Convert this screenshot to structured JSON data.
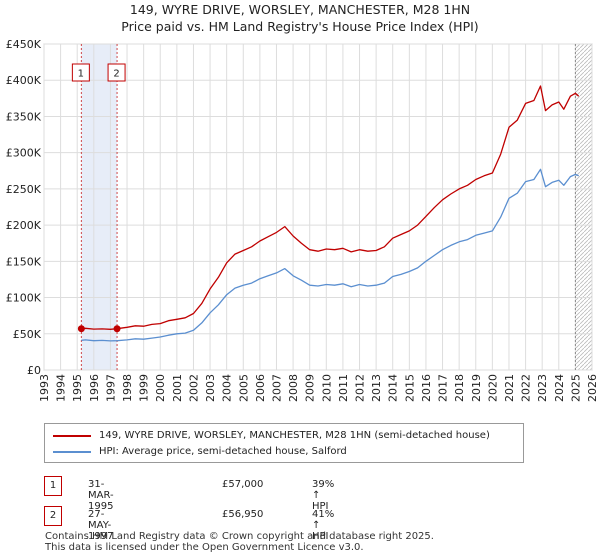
{
  "title_line1": "149, WYRE DRIVE, WORSLEY, MANCHESTER, M28 1HN",
  "title_line2": "Price paid vs. HM Land Registry's House Price Index (HPI)",
  "chart_data": {
    "type": "line",
    "x_range": [
      1993,
      2026
    ],
    "ylim": [
      0,
      450000
    ],
    "y_ticks": [
      0,
      50000,
      100000,
      150000,
      200000,
      250000,
      300000,
      350000,
      400000,
      450000
    ],
    "y_tick_labels": [
      "£0",
      "£50K",
      "£100K",
      "£150K",
      "£200K",
      "£250K",
      "£300K",
      "£350K",
      "£400K",
      "£450K"
    ],
    "x_ticks": [
      1993,
      1994,
      1995,
      1996,
      1997,
      1998,
      1999,
      2000,
      2001,
      2002,
      2003,
      2004,
      2005,
      2006,
      2007,
      2008,
      2009,
      2010,
      2011,
      2012,
      2013,
      2014,
      2015,
      2016,
      2017,
      2018,
      2019,
      2020,
      2021,
      2022,
      2023,
      2024,
      2025,
      2026
    ],
    "grid": true,
    "shaded_span": [
      1995.25,
      1997.4
    ],
    "future_hatch_start": 2025.0,
    "series": [
      {
        "name": "149, WYRE DRIVE, WORSLEY, MANCHESTER, M28 1HN (semi-detached house)",
        "color": "#c00000",
        "x": [
          1995.25,
          1995.5,
          1996.0,
          1996.5,
          1997.0,
          1997.4,
          1998.0,
          1998.5,
          1999.0,
          1999.5,
          2000.0,
          2000.5,
          2001.0,
          2001.5,
          2002.0,
          2002.5,
          2003.0,
          2003.5,
          2004.0,
          2004.5,
          2005.0,
          2005.5,
          2006.0,
          2006.5,
          2007.0,
          2007.5,
          2008.0,
          2008.5,
          2009.0,
          2009.5,
          2010.0,
          2010.5,
          2011.0,
          2011.5,
          2012.0,
          2012.5,
          2013.0,
          2013.5,
          2014.0,
          2014.5,
          2015.0,
          2015.5,
          2016.0,
          2016.5,
          2017.0,
          2017.5,
          2018.0,
          2018.5,
          2019.0,
          2019.5,
          2020.0,
          2020.5,
          2021.0,
          2021.5,
          2022.0,
          2022.5,
          2022.9,
          2023.2,
          2023.6,
          2024.0,
          2024.3,
          2024.7,
          2025.0,
          2025.2
        ],
        "values": [
          57000,
          57500,
          56500,
          56800,
          56200,
          56950,
          59000,
          61000,
          60500,
          63000,
          64000,
          68000,
          70000,
          72000,
          78000,
          92000,
          112000,
          128000,
          148000,
          160000,
          165000,
          170000,
          178000,
          184000,
          190000,
          198000,
          185000,
          175000,
          166000,
          164000,
          167000,
          166000,
          168000,
          163000,
          166000,
          164000,
          165000,
          170000,
          182000,
          187000,
          192000,
          200000,
          212000,
          224000,
          235000,
          243000,
          250000,
          255000,
          263000,
          268000,
          272000,
          298000,
          335000,
          345000,
          368000,
          372000,
          392000,
          358000,
          366000,
          370000,
          360000,
          378000,
          382000,
          378000
        ]
      },
      {
        "name": "HPI: Average price, semi-detached house, Salford",
        "color": "#5b8fd0",
        "x": [
          1995.25,
          1995.5,
          1996.0,
          1996.5,
          1997.0,
          1997.4,
          1998.0,
          1998.5,
          1999.0,
          1999.5,
          2000.0,
          2000.5,
          2001.0,
          2001.5,
          2002.0,
          2002.5,
          2003.0,
          2003.5,
          2004.0,
          2004.5,
          2005.0,
          2005.5,
          2006.0,
          2006.5,
          2007.0,
          2007.5,
          2008.0,
          2008.5,
          2009.0,
          2009.5,
          2010.0,
          2010.5,
          2011.0,
          2011.5,
          2012.0,
          2012.5,
          2013.0,
          2013.5,
          2014.0,
          2014.5,
          2015.0,
          2015.5,
          2016.0,
          2016.5,
          2017.0,
          2017.5,
          2018.0,
          2018.5,
          2019.0,
          2019.5,
          2020.0,
          2020.5,
          2021.0,
          2021.5,
          2022.0,
          2022.5,
          2022.9,
          2023.2,
          2023.6,
          2024.0,
          2024.3,
          2024.7,
          2025.0,
          2025.2
        ],
        "values": [
          41000,
          41500,
          40500,
          40800,
          40200,
          40400,
          41500,
          43000,
          42500,
          44000,
          45500,
          48000,
          50000,
          51000,
          55000,
          65000,
          79000,
          90000,
          104000,
          113000,
          117000,
          120000,
          126000,
          130000,
          134000,
          140000,
          130000,
          124000,
          117000,
          116000,
          118000,
          117000,
          119000,
          115000,
          118000,
          116000,
          117000,
          120000,
          129000,
          132000,
          136000,
          141000,
          150000,
          158000,
          166000,
          172000,
          177000,
          180000,
          186000,
          189000,
          192000,
          211000,
          237000,
          244000,
          260000,
          263000,
          277000,
          253000,
          259000,
          262000,
          255000,
          267000,
          270000,
          268000
        ]
      }
    ],
    "markers": [
      {
        "label": "1",
        "x": 1995.25,
        "y": 57000
      },
      {
        "label": "2",
        "x": 1997.4,
        "y": 56950
      }
    ]
  },
  "legend": {
    "property_label": "149, WYRE DRIVE, WORSLEY, MANCHESTER, M28 1HN (semi-detached house)",
    "hpi_label": "HPI: Average price, semi-detached house, Salford"
  },
  "sales": [
    {
      "num": "1",
      "date": "31-MAR-1995",
      "price": "£57,000",
      "hpi": "39% ↑ HPI"
    },
    {
      "num": "2",
      "date": "27-MAY-1997",
      "price": "£56,950",
      "hpi": "41% ↑ HPI"
    }
  ],
  "footer_line1": "Contains HM Land Registry data © Crown copyright and database right 2025.",
  "footer_line2": "This data is licensed under the Open Government Licence v3.0."
}
